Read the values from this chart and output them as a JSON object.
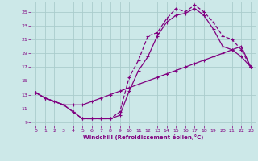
{
  "xlabel": "Windchill (Refroidissement éolien,°C)",
  "bg_color": "#cce8e8",
  "grid_color": "#aacccc",
  "line_color": "#800080",
  "xlim": [
    -0.5,
    23.5
  ],
  "ylim": [
    8.5,
    26.5
  ],
  "xticks": [
    0,
    1,
    2,
    3,
    4,
    5,
    6,
    7,
    8,
    9,
    10,
    11,
    12,
    13,
    14,
    15,
    16,
    17,
    18,
    19,
    20,
    21,
    22,
    23
  ],
  "yticks": [
    9,
    11,
    13,
    15,
    17,
    19,
    21,
    23,
    25
  ],
  "line1_x": [
    0,
    1,
    2,
    3,
    4,
    5,
    6,
    7,
    8,
    9,
    10,
    11,
    12,
    13,
    14,
    15,
    16,
    17,
    18,
    19,
    20,
    21,
    22,
    23
  ],
  "line1_y": [
    13.3,
    12.5,
    12.0,
    11.5,
    11.5,
    11.5,
    12.0,
    12.5,
    13.0,
    13.5,
    14.0,
    14.5,
    15.0,
    15.5,
    16.0,
    16.5,
    17.0,
    17.5,
    18.0,
    18.5,
    19.0,
    19.5,
    20.0,
    17.0
  ],
  "line2_x": [
    0,
    1,
    3,
    4,
    5,
    6,
    7,
    8,
    9,
    10,
    11,
    12,
    13,
    14,
    15,
    16,
    17,
    18,
    19,
    20,
    21,
    22,
    23
  ],
  "line2_y": [
    13.3,
    12.5,
    11.5,
    10.5,
    9.5,
    9.5,
    9.5,
    9.5,
    10.5,
    15.5,
    18.0,
    21.5,
    22.0,
    24.0,
    25.5,
    25.0,
    26.0,
    25.0,
    23.5,
    21.5,
    21.0,
    19.5,
    17.0
  ],
  "line3_x": [
    0,
    1,
    3,
    4,
    5,
    6,
    7,
    8,
    9,
    10,
    11,
    12,
    13,
    14,
    15,
    16,
    17,
    18,
    19,
    20,
    21,
    22,
    23
  ],
  "line3_y": [
    13.3,
    12.5,
    11.5,
    10.5,
    9.5,
    9.5,
    9.5,
    9.5,
    10.0,
    13.5,
    16.5,
    18.5,
    21.5,
    23.5,
    24.5,
    24.8,
    25.5,
    24.5,
    22.5,
    20.0,
    19.5,
    18.5,
    17.0
  ]
}
